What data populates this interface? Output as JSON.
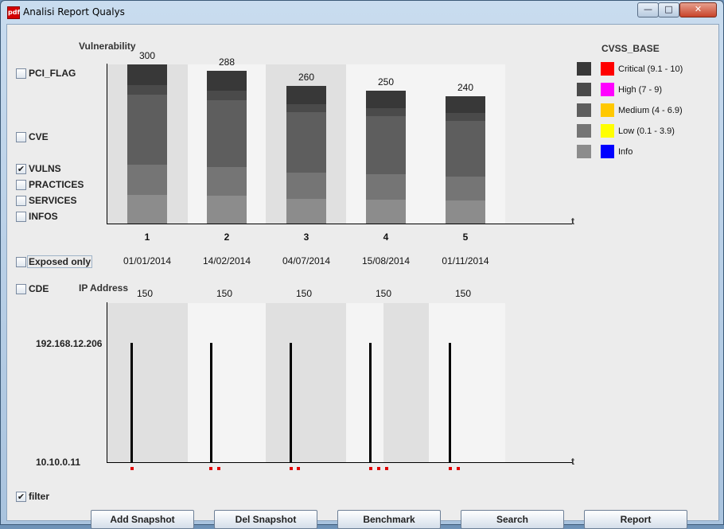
{
  "window": {
    "title": "Analisi Report Qualys",
    "icon": "pdf-app-icon"
  },
  "controls": {
    "minimize": "—",
    "maximize": "□",
    "close": "✕"
  },
  "top_chart": {
    "title": "Vulnerability",
    "axis_t": "t",
    "ticks": [
      "1",
      "2",
      "3",
      "4",
      "5"
    ],
    "totals": [
      "300",
      "288",
      "260",
      "250",
      "240"
    ],
    "dates": [
      "01/01/2014",
      "14/02/2014",
      "04/07/2014",
      "15/08/2014",
      "01/11/2014"
    ]
  },
  "bottom_chart": {
    "title": "IP Address",
    "axis_t": "t",
    "values": [
      "150",
      "150",
      "150",
      "150",
      "150"
    ],
    "ip_high": "192.168.12.206",
    "ip_low": "10.10.0.11"
  },
  "checkboxes": {
    "pci_flag": "PCI_FLAG",
    "cve": "CVE",
    "vulns": "VULNS",
    "practices": "PRACTICES",
    "services": "SERVICES",
    "infos": "INFOS",
    "exposed_only": "Exposed only",
    "cde": "CDE",
    "filter": "filter"
  },
  "checked": {
    "vulns": true,
    "filter": true
  },
  "legend": {
    "title": "CVSS_BASE",
    "items": [
      {
        "label": "Critical (9.1 - 10)",
        "color": "#ff0000"
      },
      {
        "label": "High  (7 - 9)",
        "color": "#ff00ff"
      },
      {
        "label": "Medium  (4 - 6.9)",
        "color": "#ffc800"
      },
      {
        "label": "Low  (0.1 - 3.9)",
        "color": "#ffff00"
      },
      {
        "label": "Info",
        "color": "#0000ff"
      }
    ]
  },
  "buttons": {
    "add_snapshot": "Add Snapshot",
    "del_snapshot": "Del Snapshot",
    "benchmark": "Benchmark",
    "search": "Search",
    "report": "Report"
  },
  "chart_data": {
    "type": "bar",
    "categories": [
      "1",
      "2",
      "3",
      "4",
      "5"
    ],
    "values": [
      300,
      288,
      260,
      250,
      240
    ],
    "title": "Vulnerability",
    "xlabel": "t",
    "ylabel": ""
  }
}
